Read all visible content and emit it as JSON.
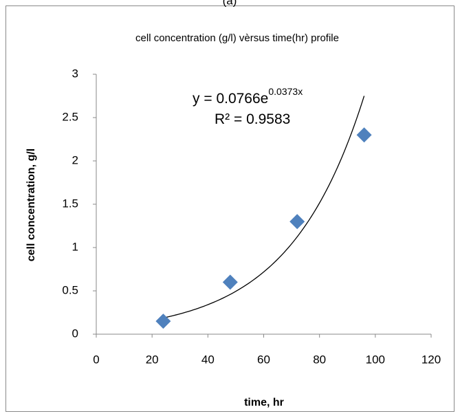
{
  "chart_data": {
    "type": "scatter",
    "panel_label": "(a)",
    "title": "cell concentration (g/l) vèrsus time(hr) profile",
    "x_label": "time, hr",
    "y_label": "cell concentration, g/l",
    "x": [
      24,
      48,
      72,
      96
    ],
    "series": [
      {
        "color": "#4f81bd",
        "values": [
          0.15,
          0.6,
          1.3,
          2.3
        ]
      }
    ],
    "xlim": [
      0,
      120
    ],
    "xticks": [
      0,
      20,
      40,
      60,
      80,
      100,
      120
    ],
    "ylim": [
      0,
      3
    ],
    "yticks": [
      0,
      0.5,
      1,
      1.5,
      2,
      2.5,
      3
    ],
    "grid": false,
    "trendline": {
      "type": "exponential",
      "prefix": "y = ",
      "a": 0.0766,
      "base": "e",
      "b": 0.0373,
      "variable": "x",
      "r2_prefix": "R² = ",
      "r2": 0.9583,
      "x_range": [
        24,
        96
      ],
      "color": "#000000"
    }
  }
}
